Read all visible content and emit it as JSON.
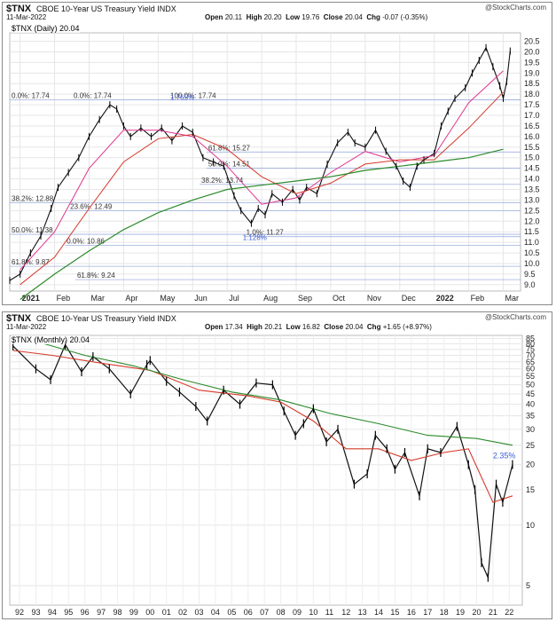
{
  "chart_data": [
    {
      "type": "line",
      "symbol": "$TNX",
      "title": "CBOE 10-Year US Treasury Yield",
      "exchange": "INDX",
      "date": "11-Mar-2022",
      "ohlc": {
        "open_label": "Open",
        "open": "20.11",
        "high_label": "High",
        "high": "20.20",
        "low_label": "Low",
        "low": "19.76",
        "close_label": "Close",
        "close": "20.04",
        "chg_label": "Chg",
        "chg": "-0.07 (-0.35%)"
      },
      "brand": "@StockCharts.com",
      "legend": "$TNX (Daily) 20.04",
      "ylim": [
        8.7,
        20.9
      ],
      "yticks": [
        "20.5",
        "20.0",
        "19.5",
        "19.0",
        "18.5",
        "18.0",
        "17.5",
        "17.0",
        "16.5",
        "16.0",
        "15.5",
        "15.0",
        "14.5",
        "14.0",
        "13.5",
        "13.0",
        "12.5",
        "12.0",
        "11.5",
        "11.0",
        "10.5",
        "10.0",
        "9.5",
        "9.0"
      ],
      "xticks": [
        {
          "x": 0,
          "label": "2021"
        },
        {
          "x": 1,
          "label": "Feb"
        },
        {
          "x": 2,
          "label": "Mar"
        },
        {
          "x": 3,
          "label": "Apr"
        },
        {
          "x": 4,
          "label": "May"
        },
        {
          "x": 5,
          "label": "Jun"
        },
        {
          "x": 6,
          "label": "Jul"
        },
        {
          "x": 7,
          "label": "Aug"
        },
        {
          "x": 8,
          "label": "Sep"
        },
        {
          "x": 9,
          "label": "Oct"
        },
        {
          "x": 10,
          "label": "Nov"
        },
        {
          "x": 11,
          "label": "Dec"
        },
        {
          "x": 12,
          "label": "2022"
        },
        {
          "x": 13,
          "label": "Feb"
        },
        {
          "x": 14,
          "label": "Mar"
        }
      ],
      "xlim": [
        -0.3,
        14.5
      ],
      "series": [
        {
          "values": [
            [
              -0.3,
              9.2
            ],
            [
              0,
              9.5
            ],
            [
              0.3,
              10.5
            ],
            [
              0.6,
              11.3
            ],
            [
              0.9,
              12.6
            ],
            [
              1.1,
              13.6
            ],
            [
              1.4,
              14.3
            ],
            [
              1.7,
              15.0
            ],
            [
              2.0,
              16.0
            ],
            [
              2.3,
              16.8
            ],
            [
              2.6,
              17.5
            ],
            [
              2.8,
              17.3
            ],
            [
              3.0,
              16.5
            ],
            [
              3.2,
              16.0
            ],
            [
              3.5,
              16.4
            ],
            [
              3.8,
              16.0
            ],
            [
              4.1,
              16.4
            ],
            [
              4.4,
              15.8
            ],
            [
              4.7,
              16.5
            ],
            [
              5.0,
              16.2
            ],
            [
              5.3,
              15.0
            ],
            [
              5.6,
              14.8
            ],
            [
              5.9,
              14.6
            ],
            [
              6.2,
              13.2
            ],
            [
              6.4,
              12.5
            ],
            [
              6.7,
              11.9
            ],
            [
              6.9,
              12.6
            ],
            [
              7.1,
              12.3
            ],
            [
              7.3,
              13.3
            ],
            [
              7.6,
              12.9
            ],
            [
              7.9,
              13.5
            ],
            [
              8.1,
              13.0
            ],
            [
              8.3,
              13.6
            ],
            [
              8.6,
              13.3
            ],
            [
              8.9,
              14.7
            ],
            [
              9.2,
              15.7
            ],
            [
              9.5,
              16.2
            ],
            [
              9.7,
              15.7
            ],
            [
              10.0,
              15.5
            ],
            [
              10.3,
              16.3
            ],
            [
              10.6,
              15.3
            ],
            [
              10.9,
              14.6
            ],
            [
              11.1,
              13.9
            ],
            [
              11.3,
              13.6
            ],
            [
              11.5,
              14.6
            ],
            [
              11.7,
              14.9
            ],
            [
              12.0,
              15.2
            ],
            [
              12.2,
              16.5
            ],
            [
              12.4,
              17.2
            ],
            [
              12.6,
              17.8
            ],
            [
              12.9,
              18.3
            ],
            [
              13.1,
              19.0
            ],
            [
              13.3,
              19.6
            ],
            [
              13.5,
              20.2
            ],
            [
              13.7,
              19.3
            ],
            [
              13.9,
              18.4
            ],
            [
              14.0,
              17.8
            ],
            [
              14.1,
              18.6
            ],
            [
              14.2,
              20.04
            ]
          ]
        },
        {
          "values": [
            [
              0,
              9.7
            ],
            [
              1,
              11.5
            ],
            [
              2,
              14.5
            ],
            [
              3,
              16.3
            ],
            [
              4,
              16.3
            ],
            [
              5,
              16.0
            ],
            [
              6,
              14.6
            ],
            [
              7,
              12.8
            ],
            [
              8,
              13.1
            ],
            [
              9,
              14.3
            ],
            [
              10,
              15.3
            ],
            [
              11,
              14.8
            ],
            [
              12,
              15.1
            ],
            [
              13,
              17.6
            ],
            [
              14,
              19.1
            ]
          ]
        },
        {
          "values": [
            [
              0,
              9.0
            ],
            [
              1,
              10.3
            ],
            [
              2,
              12.6
            ],
            [
              3,
              14.8
            ],
            [
              4,
              15.9
            ],
            [
              5,
              16.1
            ],
            [
              6,
              15.4
            ],
            [
              7,
              14.1
            ],
            [
              8,
              13.3
            ],
            [
              9,
              13.8
            ],
            [
              10,
              14.7
            ],
            [
              11,
              14.9
            ],
            [
              12,
              14.9
            ],
            [
              13,
              16.4
            ],
            [
              14,
              18.1
            ]
          ]
        },
        {
          "values": [
            [
              0,
              8.3
            ],
            [
              1,
              9.5
            ],
            [
              2,
              10.6
            ],
            [
              3,
              11.6
            ],
            [
              4,
              12.4
            ],
            [
              5,
              13.0
            ],
            [
              6,
              13.5
            ],
            [
              7,
              13.7
            ],
            [
              8,
              13.9
            ],
            [
              9,
              14.1
            ],
            [
              10,
              14.4
            ],
            [
              11,
              14.6
            ],
            [
              12,
              14.8
            ],
            [
              13,
              15.0
            ],
            [
              14,
              15.4
            ]
          ]
        }
      ],
      "annotations": [
        {
          "text": "0.0%: 17.74",
          "x": -0.3,
          "y": 17.74
        },
        {
          "text": "0.0%: 17.74",
          "x": 1.5,
          "y": 17.74
        },
        {
          "text": "100.0%: 17.74",
          "x": 4.3,
          "y": 17.74
        },
        {
          "text": "1.765%",
          "x": 4.3,
          "y": 17.65
        },
        {
          "text": "61.8%: 15.27",
          "x": 5.4,
          "y": 15.27
        },
        {
          "text": "50.0%: 14.51",
          "x": 5.4,
          "y": 14.51
        },
        {
          "text": "38.2%: 13.74",
          "x": 5.2,
          "y": 13.74
        },
        {
          "text": "38.2%: 12.88",
          "x": -0.3,
          "y": 12.88
        },
        {
          "text": "23.6%: 12.49",
          "x": 1.4,
          "y": 12.49
        },
        {
          "text": "50.0%: 11.38",
          "x": -0.3,
          "y": 11.38
        },
        {
          "text": "0.0%: 10.86",
          "x": 1.3,
          "y": 10.86
        },
        {
          "text": "1.0%: 11.27",
          "x": 6.5,
          "y": 11.27
        },
        {
          "text": "1.128%",
          "x": 6.4,
          "y": 11.03
        },
        {
          "text": "61.8%: 9.87",
          "x": -0.3,
          "y": 9.87
        },
        {
          "text": "61.8%: 9.24",
          "x": 1.6,
          "y": 9.24
        }
      ]
    },
    {
      "type": "line",
      "symbol": "$TNX",
      "title": "CBOE 10-Year US Treasury Yield",
      "exchange": "INDX",
      "date": "11-Mar-2022",
      "ohlc": {
        "open_label": "Open",
        "open": "17.34",
        "high_label": "High",
        "high": "20.21",
        "low_label": "Low",
        "low": "16.82",
        "close_label": "Close",
        "close": "20.04",
        "chg_label": "Chg",
        "chg": "+1.65 (+8.97%)"
      },
      "brand": "@StockCharts.com",
      "legend": "$TNX (Monthly) 20.04",
      "log_scale": true,
      "ylim": [
        4,
        88
      ],
      "yticks": [
        "85",
        "80",
        "75",
        "70",
        "65",
        "60",
        "55",
        "50",
        "45",
        "40",
        "35",
        "30",
        "25",
        "20",
        "15",
        "10",
        "5"
      ],
      "xticks": [
        "92",
        "93",
        "94",
        "95",
        "96",
        "97",
        "98",
        "99",
        "00",
        "01",
        "02",
        "03",
        "04",
        "05",
        "06",
        "07",
        "08",
        "09",
        "10",
        "11",
        "12",
        "13",
        "14",
        "15",
        "16",
        "17",
        "18",
        "19",
        "20",
        "21",
        "22"
      ],
      "xlim": [
        1991.4,
        2022.8
      ],
      "series": [
        {
          "values": [
            [
              1991.6,
              78
            ],
            [
              1993.0,
              60
            ],
            [
              1993.9,
              53
            ],
            [
              1994.8,
              79
            ],
            [
              1995.8,
              58
            ],
            [
              1996.5,
              69
            ],
            [
              1997.5,
              60
            ],
            [
              1998.8,
              45
            ],
            [
              1999.8,
              63
            ],
            [
              2000.0,
              66
            ],
            [
              2001.0,
              52
            ],
            [
              2001.8,
              46
            ],
            [
              2002.8,
              39
            ],
            [
              2003.5,
              33
            ],
            [
              2004.5,
              47
            ],
            [
              2005.5,
              40
            ],
            [
              2006.5,
              51
            ],
            [
              2007.5,
              50
            ],
            [
              2008.2,
              37
            ],
            [
              2008.9,
              28
            ],
            [
              2009.4,
              32
            ],
            [
              2010.0,
              38
            ],
            [
              2010.8,
              26
            ],
            [
              2011.5,
              30
            ],
            [
              2012.5,
              16
            ],
            [
              2013.3,
              18
            ],
            [
              2013.8,
              28
            ],
            [
              2014.5,
              24
            ],
            [
              2015.0,
              19
            ],
            [
              2015.6,
              23
            ],
            [
              2016.5,
              14
            ],
            [
              2017.0,
              24
            ],
            [
              2017.8,
              23
            ],
            [
              2018.8,
              31
            ],
            [
              2019.5,
              20
            ],
            [
              2019.9,
              15
            ],
            [
              2020.3,
              6.5
            ],
            [
              2020.7,
              5.5
            ],
            [
              2021.2,
              16
            ],
            [
              2021.6,
              13
            ],
            [
              2022.2,
              20.04
            ]
          ]
        },
        {
          "values": [
            [
              1991.6,
              74
            ],
            [
              1994,
              70
            ],
            [
              1997,
              64
            ],
            [
              2000,
              59
            ],
            [
              2003,
              47
            ],
            [
              2006,
              44
            ],
            [
              2008,
              41
            ],
            [
              2010,
              33
            ],
            [
              2012,
              24
            ],
            [
              2014,
              24
            ],
            [
              2016,
              21
            ],
            [
              2018,
              23
            ],
            [
              2019.5,
              24
            ],
            [
              2021,
              13
            ],
            [
              2022.2,
              14
            ]
          ]
        },
        {
          "values": [
            [
              1993.5,
              80
            ],
            [
              1996,
              70
            ],
            [
              1999,
              62
            ],
            [
              2002,
              53
            ],
            [
              2005,
              46
            ],
            [
              2008,
              42
            ],
            [
              2011,
              36
            ],
            [
              2014,
              32
            ],
            [
              2017,
              28
            ],
            [
              2020,
              27
            ],
            [
              2022.2,
              25
            ]
          ]
        }
      ],
      "annotations": [
        {
          "text": "2.35%",
          "x": 2021.0,
          "y": 21.5
        }
      ]
    }
  ]
}
